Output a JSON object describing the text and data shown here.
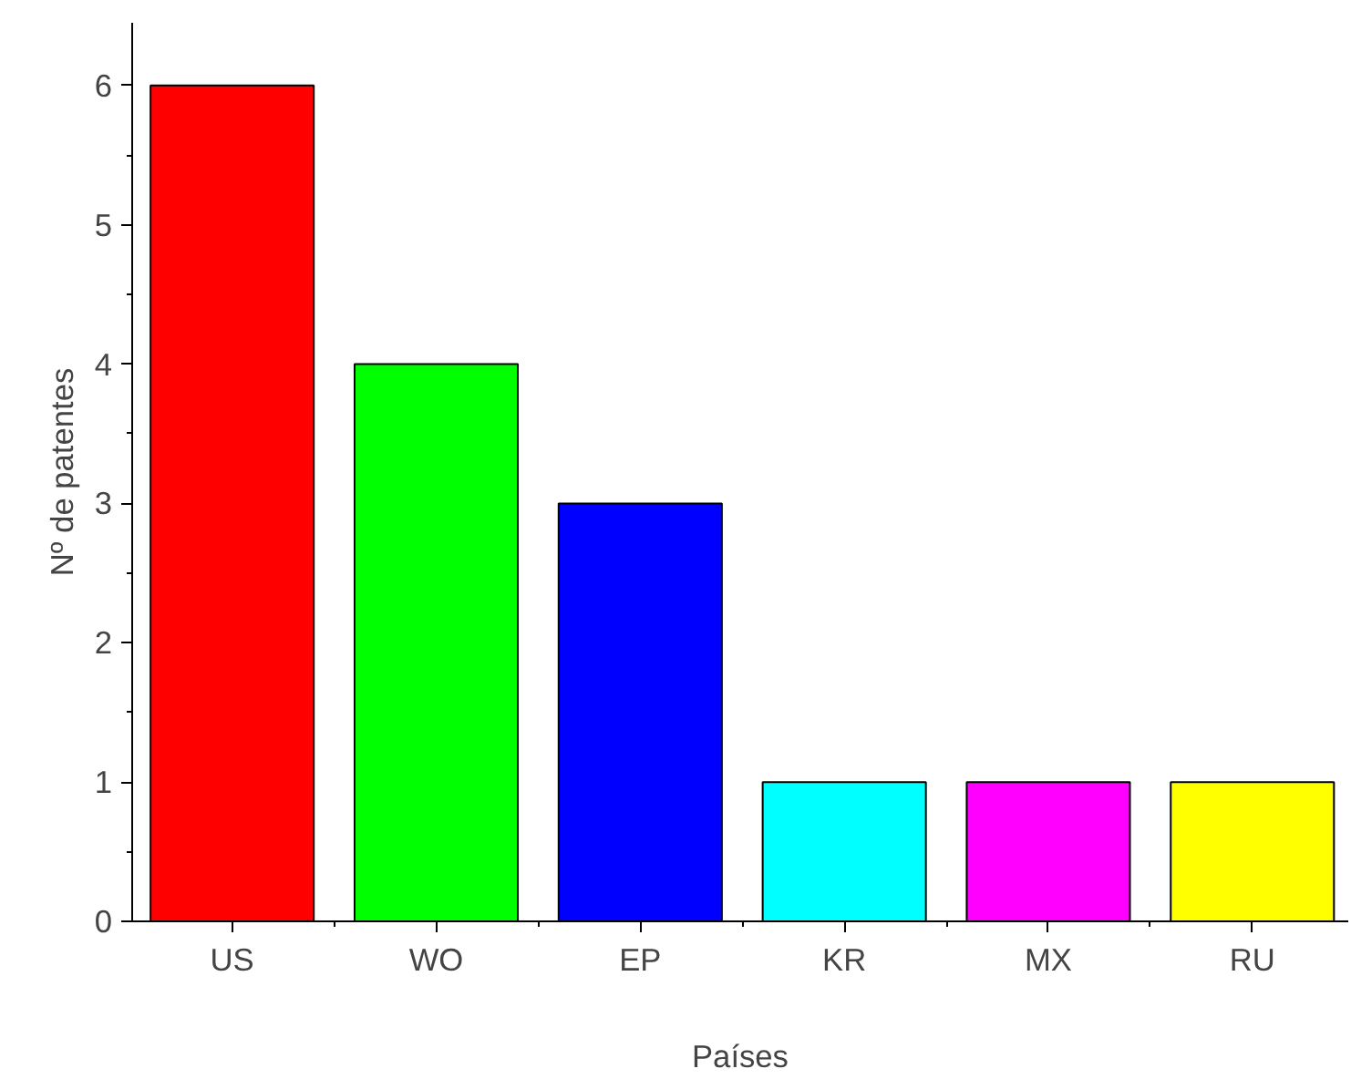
{
  "chart_data": {
    "type": "bar",
    "xlabel": "Países",
    "ylabel": "Nº de patentes",
    "categories": [
      "US",
      "WO",
      "EP",
      "KR",
      "MX",
      "RU"
    ],
    "values": [
      6,
      4,
      3,
      1,
      1,
      1
    ],
    "colors": [
      "#ff0000",
      "#00ff00",
      "#0000ff",
      "#00ffff",
      "#ff00ff",
      "#ffff00"
    ],
    "ylim": [
      0,
      6.45
    ],
    "yticks": [
      0,
      1,
      2,
      3,
      4,
      5,
      6
    ],
    "grid": false
  }
}
